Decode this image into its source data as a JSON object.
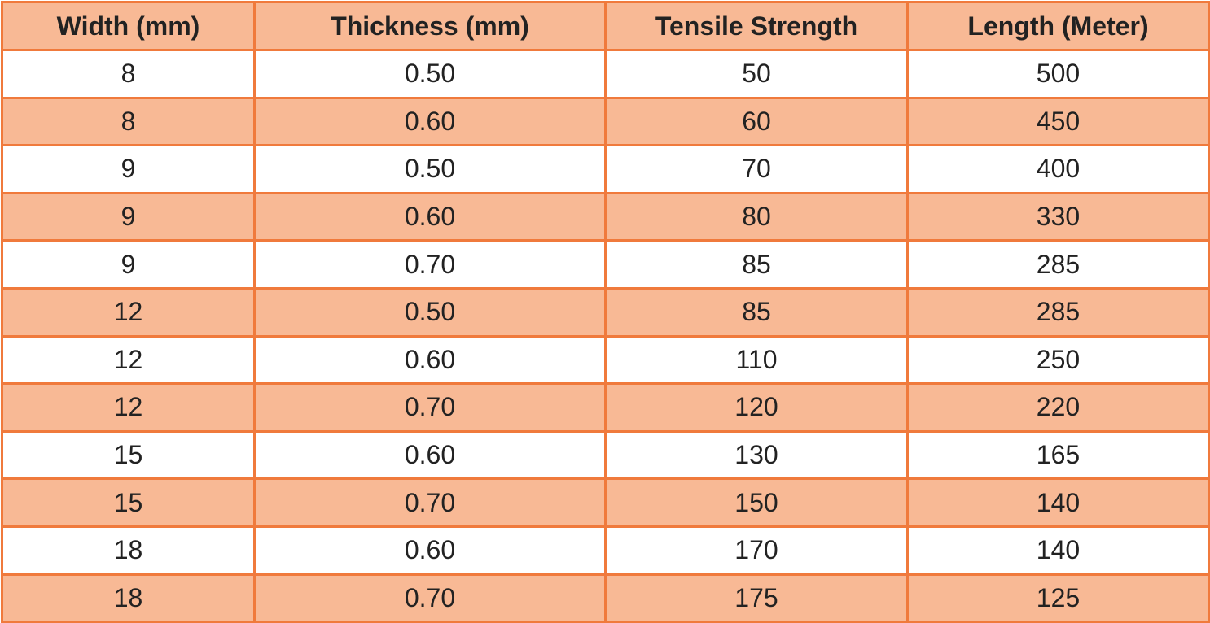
{
  "table": {
    "headers": [
      "Width (mm)",
      "Thickness (mm)",
      "Tensile Strength",
      "Length (Meter)"
    ],
    "rows": [
      [
        "8",
        "0.50",
        "50",
        "500"
      ],
      [
        "8",
        "0.60",
        "60",
        "450"
      ],
      [
        "9",
        "0.50",
        "70",
        "400"
      ],
      [
        "9",
        "0.60",
        "80",
        "330"
      ],
      [
        "9",
        "0.70",
        "85",
        "285"
      ],
      [
        "12",
        "0.50",
        "85",
        "285"
      ],
      [
        "12",
        "0.60",
        "110",
        "250"
      ],
      [
        "12",
        "0.70",
        "120",
        "220"
      ],
      [
        "15",
        "0.60",
        "130",
        "165"
      ],
      [
        "15",
        "0.70",
        "150",
        "140"
      ],
      [
        "18",
        "0.60",
        "170",
        "140"
      ],
      [
        "18",
        "0.70",
        "175",
        "125"
      ]
    ]
  },
  "colors": {
    "border": "#f07a3c",
    "header_bg": "#f8b995",
    "stripe_bg": "#f8b995",
    "row_bg": "#ffffff",
    "text": "#222222"
  }
}
